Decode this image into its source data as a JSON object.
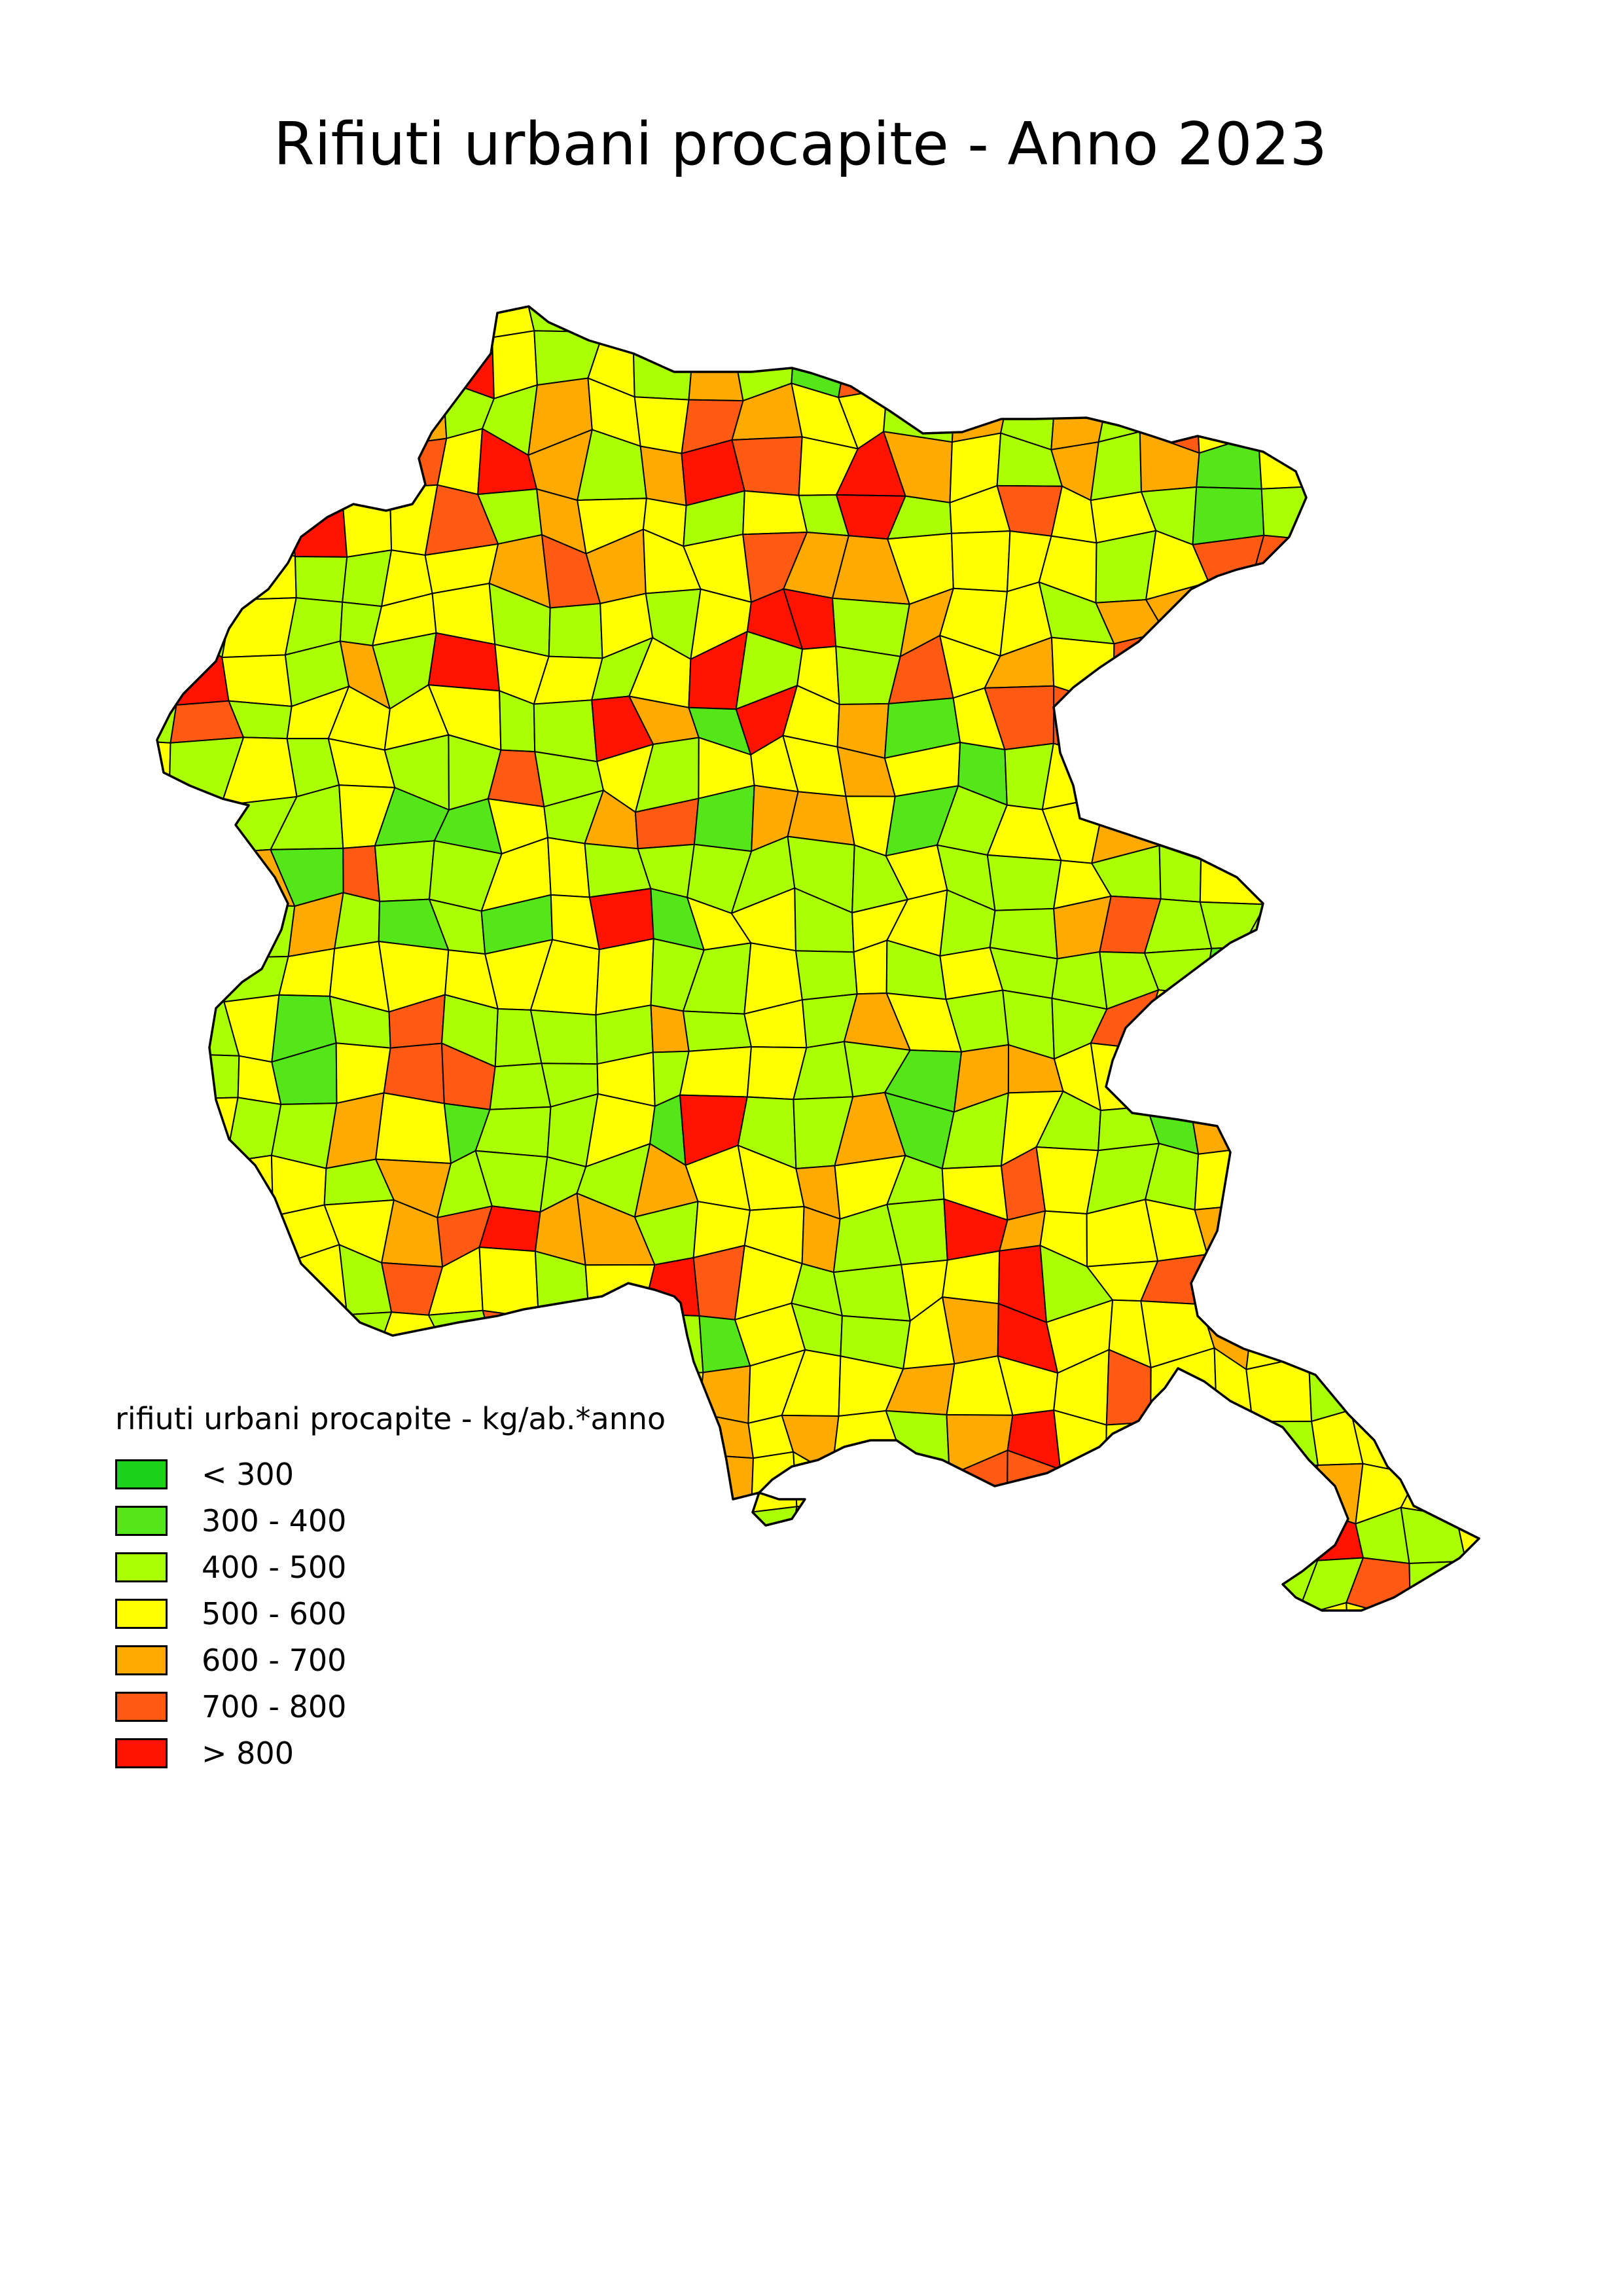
{
  "title": "Rifiuti urbani procapite - Anno 2023",
  "legend": {
    "title": "rifiuti urbani procapite - kg/ab.*anno",
    "classes": [
      {
        "label": "< 300",
        "color": "#19d219"
      },
      {
        "label": "300 - 400",
        "color": "#55e619"
      },
      {
        "label": "400 - 500",
        "color": "#aaff00"
      },
      {
        "label": "500 - 600",
        "color": "#ffff00"
      },
      {
        "label": "600 - 700",
        "color": "#ffaa00"
      },
      {
        "label": "700 - 800",
        "color": "#ff5a14"
      },
      {
        "label": "> 800",
        "color": "#ff1200"
      }
    ]
  },
  "map": {
    "outline_color": "#000000",
    "municipality_class_colors": [
      "#ff1200",
      "#ff5a14",
      "#ffaa00",
      "#ffff00",
      "#aaff00",
      "#55e619",
      "#19d219"
    ]
  }
}
